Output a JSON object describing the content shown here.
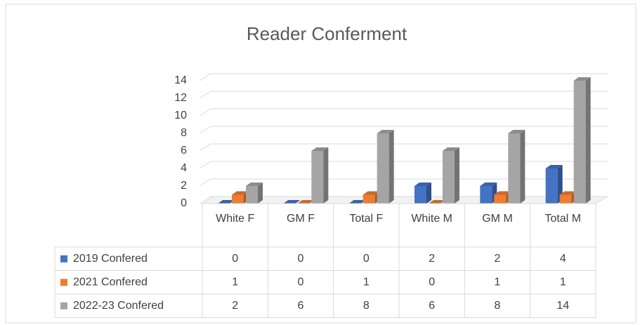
{
  "chart_data": {
    "type": "bar3d",
    "title": "Reader Conferment",
    "categories": [
      "White F",
      "GM F",
      "Total F",
      "White M",
      "GM M",
      "Total M"
    ],
    "series": [
      {
        "name": "2019 Confered",
        "color": "#4472c4",
        "values": [
          0,
          0,
          0,
          2,
          2,
          4
        ]
      },
      {
        "name": "2021 Confered",
        "color": "#ed7d31",
        "values": [
          1,
          0,
          1,
          0,
          1,
          1
        ]
      },
      {
        "name": "2022-23 Confered",
        "color": "#a5a5a5",
        "values": [
          2,
          6,
          8,
          6,
          8,
          14
        ]
      }
    ],
    "ylim": [
      0,
      14
    ],
    "yticks": [
      0,
      2,
      4,
      6,
      8,
      10,
      12,
      14
    ],
    "grid": true,
    "legend": "table"
  }
}
